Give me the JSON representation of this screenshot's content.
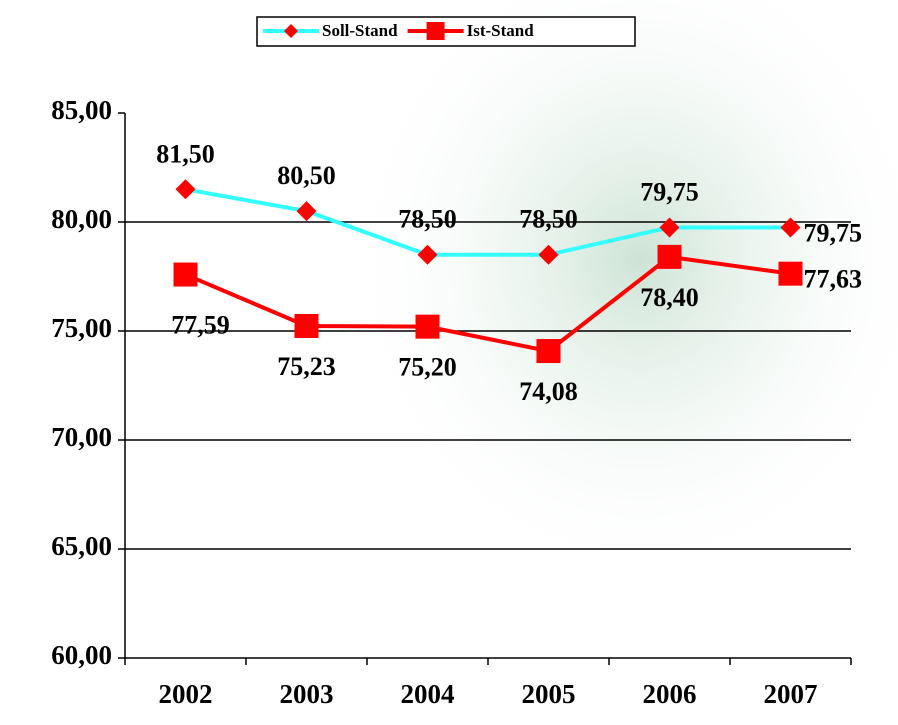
{
  "chart_data": {
    "type": "line",
    "categories": [
      "2002",
      "2003",
      "2004",
      "2005",
      "2006",
      "2007"
    ],
    "series": [
      {
        "name": "Soll-Stand",
        "color": "#33ffff",
        "marker": "diamond",
        "marker_color": "#ff0000",
        "values": [
          81.5,
          80.5,
          78.5,
          78.5,
          79.75,
          79.75
        ],
        "value_labels": [
          "81,50",
          "80,50",
          "78,50",
          "78,50",
          "79,75",
          "79,75"
        ]
      },
      {
        "name": "Ist-Stand",
        "color": "#ff0000",
        "marker": "square",
        "marker_color": "#ff0000",
        "values": [
          77.59,
          75.23,
          75.2,
          74.08,
          78.4,
          77.63
        ],
        "value_labels": [
          "77,59",
          "75,23",
          "75,20",
          "74,08",
          "78,40",
          "77,63"
        ]
      }
    ],
    "ylim": [
      60,
      85
    ],
    "yticks": [
      {
        "value": 60,
        "label": "60,00"
      },
      {
        "value": 65,
        "label": "65,00"
      },
      {
        "value": 70,
        "label": "70,00"
      },
      {
        "value": 75,
        "label": "75,00"
      },
      {
        "value": 80,
        "label": "80,00"
      },
      {
        "value": 85,
        "label": "85,00"
      }
    ],
    "grid": true,
    "legend": "top"
  }
}
